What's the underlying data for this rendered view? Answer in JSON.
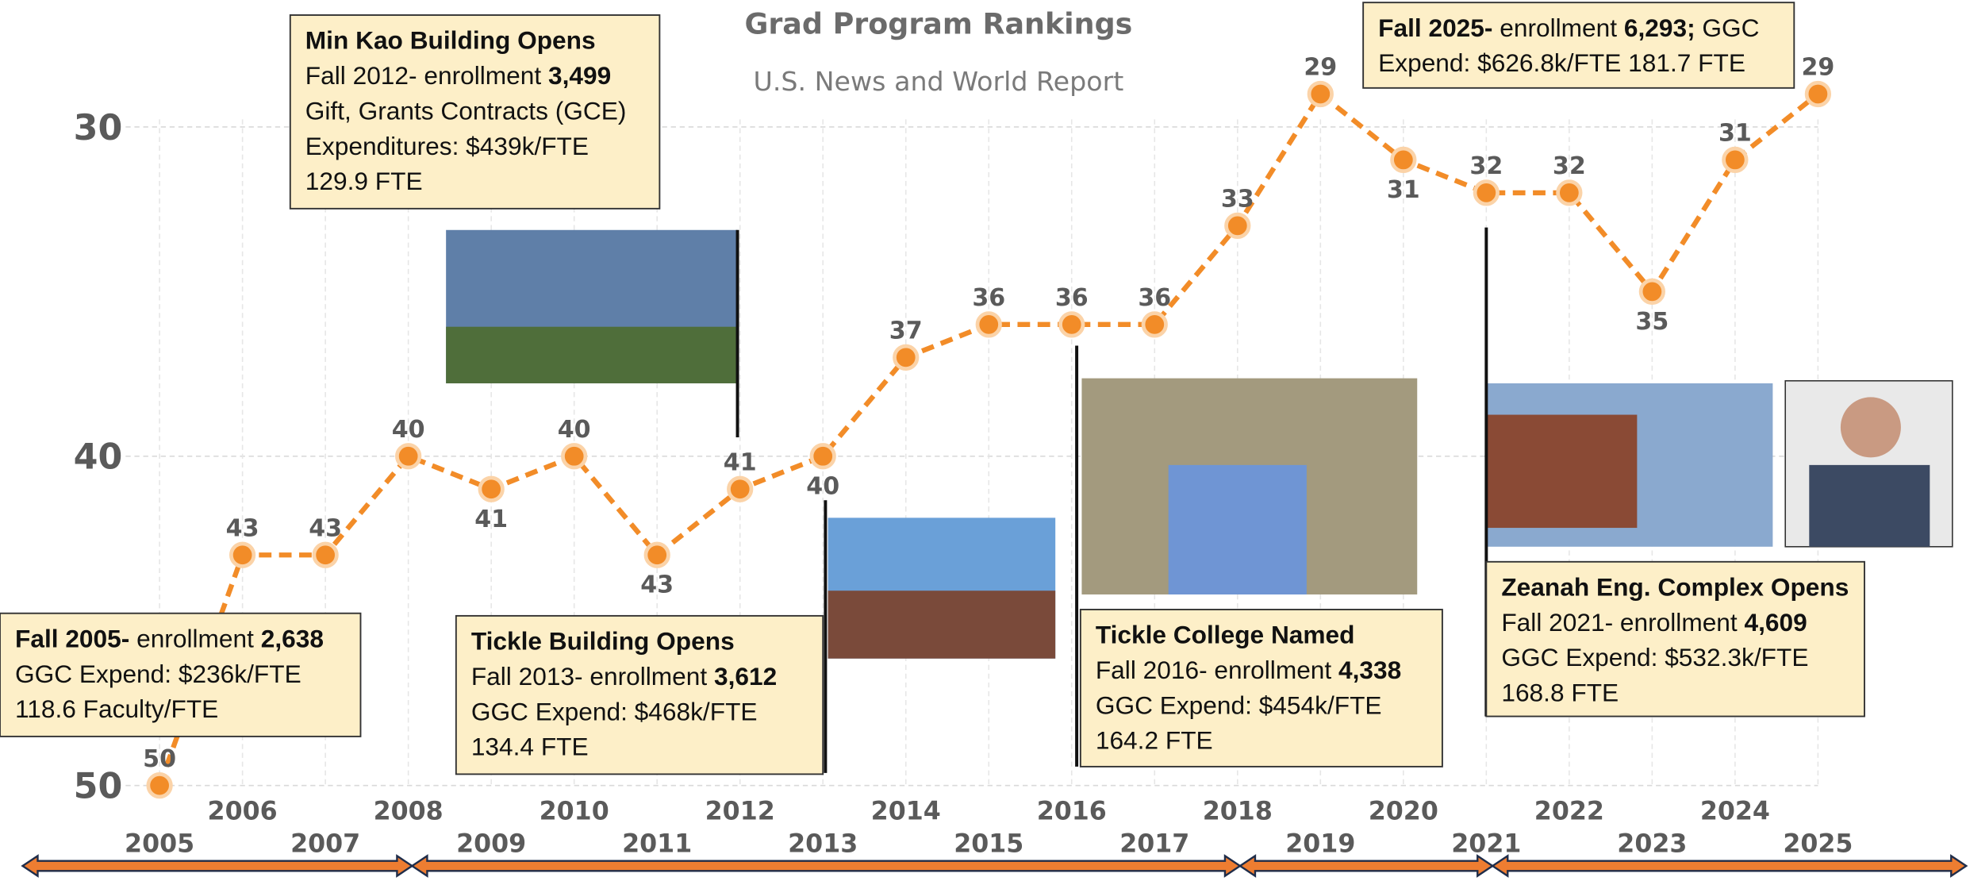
{
  "chart_data": {
    "type": "line",
    "title": "Grad Program Rankings",
    "subtitle": "U.S. News and World Report",
    "x": [
      2005,
      2006,
      2007,
      2008,
      2009,
      2010,
      2011,
      2012,
      2013,
      2014,
      2015,
      2016,
      2017,
      2018,
      2019,
      2020,
      2021,
      2022,
      2023,
      2024,
      2025
    ],
    "values": [
      50,
      43,
      43,
      40,
      41,
      40,
      43,
      41,
      40,
      37,
      36,
      36,
      36,
      33,
      29,
      31,
      32,
      32,
      35,
      31,
      29
    ],
    "color": "#f28c28",
    "xlim": [
      2005,
      2025
    ],
    "xticks": [
      2005,
      2006,
      2007,
      2008,
      2009,
      2010,
      2011,
      2012,
      2013,
      2014,
      2015,
      2016,
      2017,
      2018,
      2019,
      2020,
      2021,
      2022,
      2023,
      2024,
      2025
    ],
    "ylim": [
      50,
      28
    ],
    "yticks": [
      30,
      40,
      50
    ],
    "grid": true,
    "annotations": [
      {
        "title": "Min Kao Building Opens",
        "lines": [
          [
            {
              "text": "Fall 2012- enrollment "
            },
            {
              "text": "3,499",
              "bold": true
            }
          ],
          [
            {
              "text": "Gift, Grants Contracts (GCE)"
            }
          ],
          [
            {
              "text": "Expenditures: $439k/FTE"
            }
          ],
          [
            {
              "text": "129.9 FTE"
            }
          ]
        ]
      },
      {
        "lines": [
          [
            {
              "text": "Fall 2005-",
              "bold": true
            },
            {
              "text": " enrollment "
            },
            {
              "text": "2,638",
              "bold": true
            }
          ],
          [
            {
              "text": "GGC Expend: $236k/FTE"
            }
          ],
          [
            {
              "text": "118.6 Faculty/FTE"
            }
          ]
        ]
      },
      {
        "title": "Tickle Building Opens",
        "lines": [
          [
            {
              "text": "Fall 2013- enrollment "
            },
            {
              "text": "3,612",
              "bold": true
            }
          ],
          [
            {
              "text": "GGC Expend: $468k/FTE"
            }
          ],
          [
            {
              "text": "134.4 FTE"
            }
          ]
        ]
      },
      {
        "title": "Tickle College Named",
        "lines": [
          [
            {
              "text": "Fall 2016- enrollment "
            },
            {
              "text": "4,338",
              "bold": true
            }
          ],
          [
            {
              "text": "GGC Expend: $454k/FTE"
            }
          ],
          [
            {
              "text": "164.2 FTE"
            }
          ]
        ]
      },
      {
        "title": "Zeanah Eng. Complex Opens",
        "lines": [
          [
            {
              "text": "Fall 2021- enrollment "
            },
            {
              "text": "4,609",
              "bold": true
            }
          ],
          [
            {
              "text": "GGC Expend: $532.3k/FTE"
            }
          ],
          [
            {
              "text": "168.8 FTE"
            }
          ]
        ]
      },
      {
        "lines": [
          [
            {
              "text": "Fall 2025-",
              "bold": true
            },
            {
              "text": " enrollment "
            },
            {
              "text": "6,293;",
              "bold": true
            },
            {
              "text": " GGC"
            }
          ],
          [
            {
              "text": "Expend: $626.8k/FTE 181.7 FTE"
            }
          ]
        ]
      }
    ]
  }
}
